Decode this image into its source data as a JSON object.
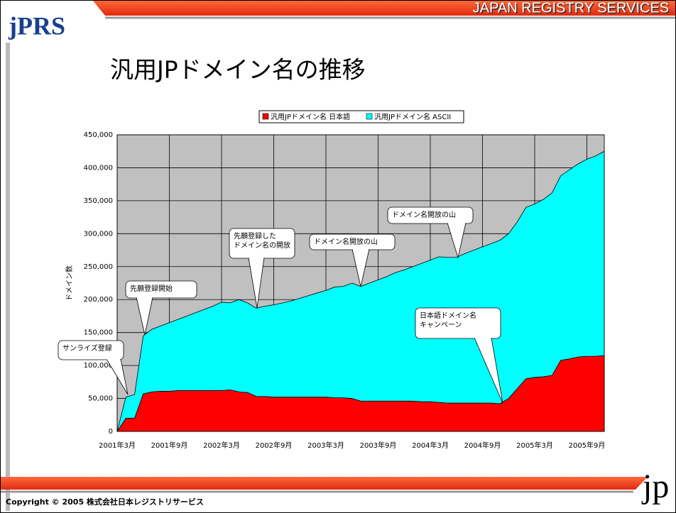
{
  "header": {
    "logo": "jPRS",
    "company": "JAPAN REGISTRY SERVICES",
    "title": "汎用JPドメイン名の推移"
  },
  "chart_data": {
    "type": "stacked-area",
    "y_label": "ドメイン数",
    "categories": [
      "2001年3月",
      null,
      null,
      null,
      null,
      null,
      "2001年9月",
      null,
      null,
      null,
      null,
      null,
      "2002年3月",
      null,
      null,
      null,
      null,
      null,
      "2002年9月",
      null,
      null,
      null,
      null,
      null,
      "2003年3月",
      null,
      null,
      null,
      null,
      null,
      "2003年9月",
      null,
      null,
      null,
      null,
      null,
      "2004年3月",
      null,
      null,
      null,
      null,
      null,
      "2004年9月",
      null,
      null,
      null,
      null,
      null,
      "2005年3月",
      null,
      null,
      null,
      null,
      null,
      "2005年9月",
      null,
      null
    ],
    "series": [
      {
        "name": "汎用JPドメイン名 日本語",
        "color": "#ff0000",
        "values": [
          0,
          20000,
          20000,
          57000,
          60000,
          61000,
          61000,
          62000,
          62000,
          62000,
          62000,
          62000,
          62000,
          63000,
          60000,
          59000,
          53000,
          53000,
          52000,
          52000,
          52000,
          52000,
          52000,
          52000,
          52000,
          51000,
          51000,
          50000,
          46000,
          46000,
          46000,
          46000,
          46000,
          46000,
          46000,
          45000,
          45000,
          44000,
          43000,
          43000,
          43000,
          43000,
          43000,
          43000,
          42000,
          50000,
          65000,
          80000,
          82000,
          83000,
          85000,
          108000,
          110000,
          113000,
          114000,
          114000,
          115000
        ]
      },
      {
        "name": "汎用JPドメイン名 ASCII",
        "color": "#00ffff",
        "values": [
          0,
          32000,
          36000,
          88000,
          95000,
          99000,
          104000,
          108000,
          113000,
          118000,
          123000,
          128000,
          134000,
          132000,
          140000,
          136000,
          134000,
          137000,
          140000,
          143000,
          146000,
          150000,
          154000,
          158000,
          162000,
          168000,
          169000,
          175000,
          174000,
          179000,
          184000,
          189000,
          195000,
          199000,
          204000,
          210000,
          215000,
          221000,
          221000,
          221000,
          227000,
          232000,
          237000,
          242000,
          248000,
          250000,
          253000,
          260000,
          263000,
          269000,
          277000,
          280000,
          287000,
          293000,
          299000,
          304000,
          310000
        ]
      }
    ],
    "ylim": [
      0,
      450000
    ],
    "yticks": [
      0,
      {
        "value": 50000,
        "label": "50,000"
      },
      {
        "value": 100000,
        "label": "100,000"
      },
      {
        "value": 150000,
        "label": "150,000"
      },
      {
        "value": 200000,
        "label": "200,000"
      },
      {
        "value": 250000,
        "label": "250,000"
      },
      {
        "value": 300000,
        "label": "300,000"
      },
      {
        "value": 350000,
        "label": "350,000"
      },
      {
        "value": 400000,
        "label": "400,000"
      },
      {
        "value": 450000,
        "label": "450,000"
      }
    ],
    "grid": true,
    "legend": "top",
    "plot_color": "#c0c0c0",
    "annotations": [
      [
        "サンライズ登録"
      ],
      [
        "先願登録開始"
      ],
      [
        "先願登録した",
        "ドメイン名の開放"
      ],
      [
        "ドメイン名開放の山"
      ],
      [
        "ドメイン名開放の山"
      ],
      [
        "日本語ドメイン名",
        "キャンペーン"
      ]
    ]
  },
  "footer": {
    "copyright": "Copyright © 2005 株式会社日本レジストリサービス",
    "logo": "jp"
  }
}
